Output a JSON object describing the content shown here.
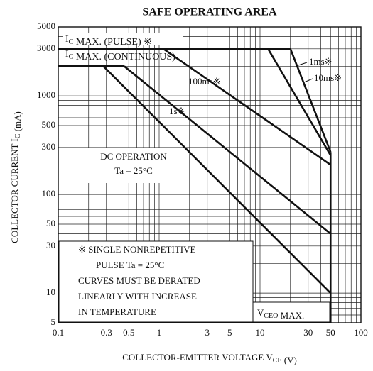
{
  "chart_data": {
    "type": "line",
    "title": "SAFE OPERATING AREA",
    "x_label": [
      "COLLECTOR-EMITTER VOLTAGE  V",
      {
        "sub": "CE"
      },
      "  (V)"
    ],
    "y_label": [
      "COLLECTOR CURRENT  I",
      {
        "sub": "C"
      },
      "  (mA)"
    ],
    "log_x": true,
    "log_y": true,
    "xlim": [
      0.1,
      100
    ],
    "ylim": [
      5,
      5000
    ],
    "xticks": [
      0.1,
      0.3,
      0.5,
      1,
      3,
      5,
      10,
      30,
      50,
      100
    ],
    "yticks": [
      5,
      10,
      30,
      50,
      100,
      300,
      500,
      1000,
      3000,
      5000
    ],
    "xgrid": [
      0.2,
      0.4,
      0.6,
      0.7,
      0.8,
      0.9,
      2,
      4,
      6,
      7,
      8,
      9,
      20,
      40,
      60,
      70,
      80,
      90
    ],
    "ygrid": [
      6,
      7,
      8,
      9,
      20,
      40,
      60,
      70,
      80,
      90,
      200,
      400,
      600,
      700,
      800,
      900,
      2000,
      4000
    ],
    "color": "#111111",
    "series": [
      {
        "label": [
          "I",
          {
            "sub": "C"
          },
          " MAX. (PULSE) ※"
        ],
        "x": [
          0.1,
          20
        ],
        "values": [
          3000,
          3000
        ]
      },
      {
        "label": [
          "I",
          {
            "sub": "C"
          },
          " MAX. (CONTINUOUS)"
        ],
        "x": [
          0.1,
          0.45
        ],
        "values": [
          2000,
          2000
        ]
      },
      {
        "label": [
          "DC OPERATION"
        ],
        "x": [
          0.28,
          50
        ],
        "values": [
          2000,
          10
        ]
      },
      {
        "label": [
          "1s※"
        ],
        "x": [
          0.45,
          50
        ],
        "values": [
          2000,
          40
        ]
      },
      {
        "label": [
          "100ms※"
        ],
        "x": [
          1.1,
          50
        ],
        "values": [
          3000,
          200
        ]
      },
      {
        "label": [
          "10ms※"
        ],
        "x": [
          12,
          50
        ],
        "values": [
          3000,
          250
        ]
      },
      {
        "label": [
          "1ms※"
        ],
        "x": [
          20,
          50
        ],
        "values": [
          3000,
          270
        ]
      },
      {
        "label": [
          "V",
          {
            "sub": "CEO"
          },
          " MAX."
        ],
        "x": [
          50,
          50
        ],
        "values": [
          270,
          5
        ]
      }
    ],
    "annotations": [
      "Ta = 25°C"
    ],
    "note": [
      "※ SINGLE NONREPETITIVE",
      "PULSE    Ta = 25°C",
      "CURVES MUST BE DERATED",
      "LINEARLY WITH INCREASE",
      "IN TEMPERATURE"
    ]
  }
}
